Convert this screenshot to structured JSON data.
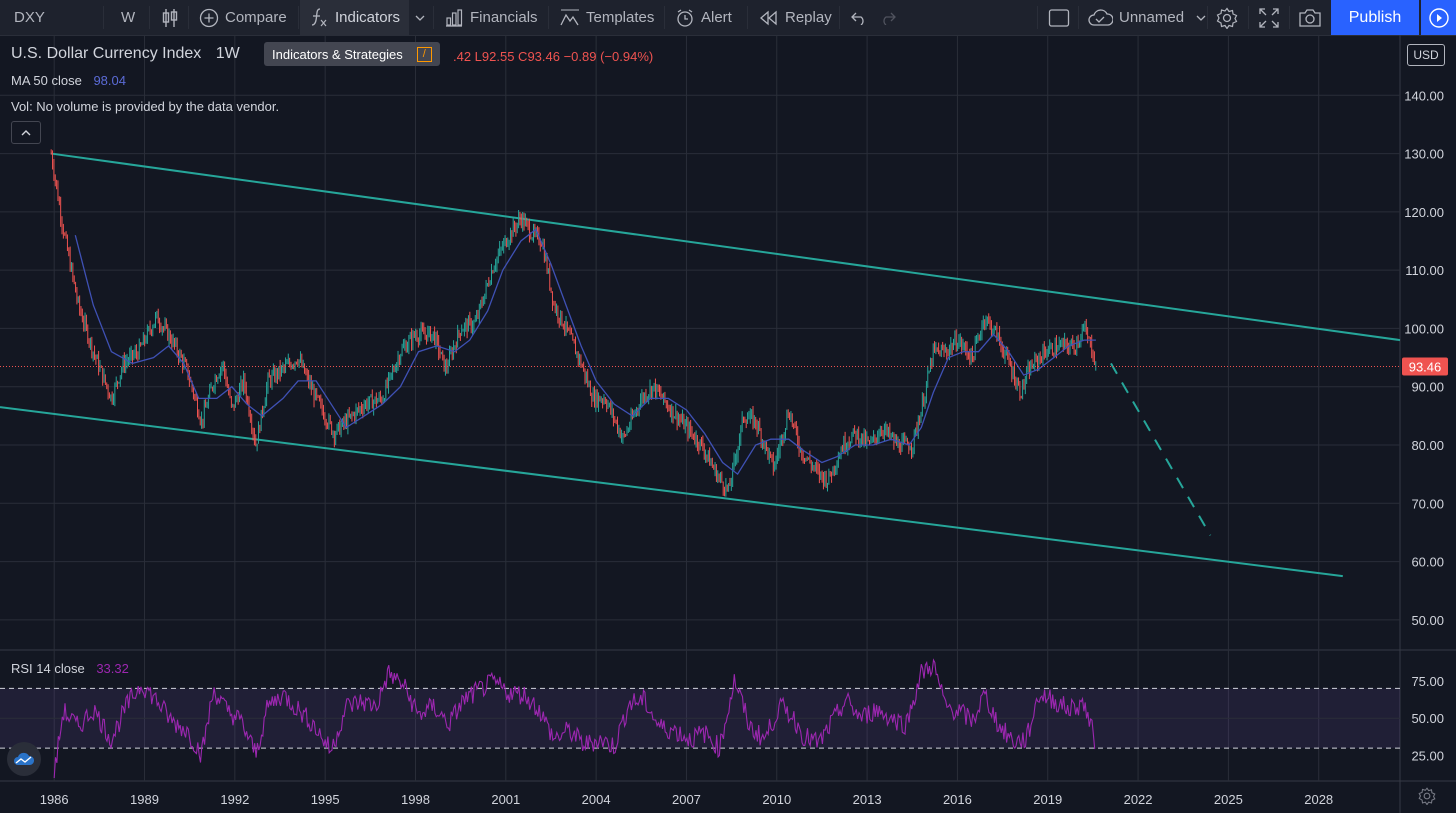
{
  "toolbar": {
    "symbol": "DXY",
    "interval": "W",
    "compare": "Compare",
    "indicators": "Indicators",
    "financials": "Financials",
    "templates": "Templates",
    "alert": "Alert",
    "replay": "Replay",
    "layout_name": "Unnamed",
    "publish": "Publish"
  },
  "tooltip": {
    "label": "Indicators & Strategies",
    "key": "/"
  },
  "legend": {
    "title": "U.S. Dollar Currency Index",
    "interval": "1W",
    "ohlc_visible": ".42  L92.55  C93.46  −0.89 (−0.94%)",
    "ma_label": "MA 50 close",
    "ma_value": "98.04",
    "vol_text": "Vol: No volume is provided by the data vendor."
  },
  "currency": "USD",
  "colors": {
    "background": "#131722",
    "grid": "#2a2e39",
    "trendline": "#26a69a",
    "ma_line": "#3f51b5",
    "candle_up": "#26a69a",
    "candle_down": "#ef5350",
    "rsi_line": "#9c27b0",
    "rsi_band": "#7e57c2",
    "price_label": "#ef5350",
    "ma_value": "#5b6bd6",
    "rsi_value": "#9c27b0",
    "publish": "#2962ff"
  },
  "chart_data": [
    {
      "type": "line",
      "title": "U.S. Dollar Currency Index",
      "interval": "1W",
      "y_axis_ticks": [
        "140.00",
        "130.00",
        "120.00",
        "110.00",
        "100.00",
        "90.00",
        "80.00",
        "70.00",
        "60.00",
        "50.00"
      ],
      "ylim": [
        45,
        150
      ],
      "x_axis_ticks": [
        "1986",
        "1989",
        "1992",
        "1995",
        "1998",
        "2001",
        "2004",
        "2007",
        "2010",
        "2013",
        "2016",
        "2019",
        "2022",
        "2025",
        "2028"
      ],
      "xlim": [
        1984.2,
        2030.7
      ],
      "last_price": "93.46",
      "price_series_approx": [
        [
          1985.9,
          130
        ],
        [
          1986.3,
          117
        ],
        [
          1986.8,
          104
        ],
        [
          1987.3,
          96
        ],
        [
          1987.9,
          88
        ],
        [
          1988.3,
          94
        ],
        [
          1988.8,
          96
        ],
        [
          1989.4,
          102
        ],
        [
          1989.9,
          98
        ],
        [
          1990.4,
          93
        ],
        [
          1990.9,
          84
        ],
        [
          1991.3,
          91
        ],
        [
          1991.6,
          94
        ],
        [
          1991.9,
          86
        ],
        [
          1992.3,
          91
        ],
        [
          1992.7,
          80
        ],
        [
          1993.1,
          91
        ],
        [
          1993.6,
          93
        ],
        [
          1994.1,
          95
        ],
        [
          1994.6,
          89
        ],
        [
          1995.3,
          82
        ],
        [
          1995.7,
          84
        ],
        [
          1996.3,
          87
        ],
        [
          1996.9,
          88
        ],
        [
          1997.5,
          96
        ],
        [
          1998.0,
          99
        ],
        [
          1998.6,
          99
        ],
        [
          1999.0,
          93
        ],
        [
          1999.5,
          100
        ],
        [
          2000.0,
          101
        ],
        [
          2000.6,
          111
        ],
        [
          2001.0,
          115
        ],
        [
          2001.5,
          119
        ],
        [
          2001.9,
          116
        ],
        [
          2002.2,
          115
        ],
        [
          2002.6,
          104
        ],
        [
          2003.0,
          100
        ],
        [
          2003.5,
          94
        ],
        [
          2003.9,
          88
        ],
        [
          2004.3,
          88
        ],
        [
          2004.9,
          81
        ],
        [
          2005.5,
          88
        ],
        [
          2005.9,
          90
        ],
        [
          2006.5,
          86
        ],
        [
          2007.0,
          83
        ],
        [
          2007.5,
          80
        ],
        [
          2008.0,
          75
        ],
        [
          2008.4,
          72
        ],
        [
          2008.9,
          85
        ],
        [
          2009.3,
          84
        ],
        [
          2009.9,
          76
        ],
        [
          2010.4,
          86
        ],
        [
          2010.8,
          79
        ],
        [
          2011.4,
          75
        ],
        [
          2011.7,
          74
        ],
        [
          2012.2,
          80
        ],
        [
          2012.6,
          82
        ],
        [
          2013.1,
          80
        ],
        [
          2013.5,
          83
        ],
        [
          2014.0,
          80
        ],
        [
          2014.5,
          80
        ],
        [
          2014.8,
          86
        ],
        [
          2015.2,
          96
        ],
        [
          2015.6,
          96
        ],
        [
          2016.0,
          98
        ],
        [
          2016.5,
          95
        ],
        [
          2016.9,
          102
        ],
        [
          2017.3,
          99
        ],
        [
          2017.8,
          93
        ],
        [
          2018.1,
          89
        ],
        [
          2018.4,
          93
        ],
        [
          2018.9,
          96
        ],
        [
          2019.4,
          97
        ],
        [
          2019.9,
          97
        ],
        [
          2020.2,
          100
        ],
        [
          2020.5,
          96
        ],
        [
          2020.6,
          93.5
        ]
      ],
      "ma_series_approx": [
        [
          1986.7,
          116
        ],
        [
          1987.3,
          104
        ],
        [
          1987.9,
          96
        ],
        [
          1988.6,
          94
        ],
        [
          1989.3,
          95
        ],
        [
          1989.8,
          97
        ],
        [
          1990.3,
          94
        ],
        [
          1990.8,
          88
        ],
        [
          1991.4,
          88
        ],
        [
          1991.9,
          90
        ],
        [
          1992.4,
          87
        ],
        [
          1992.9,
          85
        ],
        [
          1993.6,
          88
        ],
        [
          1994.1,
          91
        ],
        [
          1994.7,
          91
        ],
        [
          1995.2,
          87
        ],
        [
          1995.7,
          83
        ],
        [
          1996.3,
          85
        ],
        [
          1996.9,
          87
        ],
        [
          1997.5,
          90
        ],
        [
          1998.1,
          96
        ],
        [
          1998.7,
          97
        ],
        [
          1999.3,
          96
        ],
        [
          1999.8,
          98
        ],
        [
          2000.4,
          103
        ],
        [
          2000.9,
          110
        ],
        [
          2001.5,
          115
        ],
        [
          2002.0,
          117
        ],
        [
          2002.5,
          111
        ],
        [
          2003.0,
          104
        ],
        [
          2003.5,
          97
        ],
        [
          2004.0,
          91
        ],
        [
          2004.6,
          87
        ],
        [
          2005.2,
          85
        ],
        [
          2005.8,
          88
        ],
        [
          2006.4,
          88
        ],
        [
          2007.0,
          86
        ],
        [
          2007.6,
          82
        ],
        [
          2008.2,
          77
        ],
        [
          2008.7,
          75
        ],
        [
          2009.3,
          80
        ],
        [
          2009.8,
          81
        ],
        [
          2010.4,
          81
        ],
        [
          2010.9,
          79
        ],
        [
          2011.5,
          77
        ],
        [
          2012.0,
          78
        ],
        [
          2012.6,
          80
        ],
        [
          2013.2,
          80
        ],
        [
          2013.8,
          81
        ],
        [
          2014.4,
          80
        ],
        [
          2014.8,
          83
        ],
        [
          2015.2,
          89
        ],
        [
          2015.7,
          95
        ],
        [
          2016.2,
          96
        ],
        [
          2016.7,
          96
        ],
        [
          2017.2,
          99
        ],
        [
          2017.7,
          96
        ],
        [
          2018.2,
          92
        ],
        [
          2018.7,
          93
        ],
        [
          2019.2,
          95
        ],
        [
          2019.7,
          97
        ],
        [
          2020.2,
          98
        ],
        [
          2020.6,
          98
        ]
      ],
      "trendlines_approx": [
        {
          "name": "upper channel",
          "from": [
            1985.9,
            130
          ],
          "to": [
            2030.7,
            98
          ]
        },
        {
          "name": "lower channel",
          "from": [
            1984.2,
            86.5
          ],
          "to": [
            2028.8,
            57.5
          ]
        },
        {
          "name": "projection (dashed)",
          "from": [
            2021.1,
            94
          ],
          "to": [
            2024.4,
            64.5
          ]
        }
      ]
    },
    {
      "type": "line",
      "title": "RSI 14 close",
      "value": "33.32",
      "y_axis_ticks": [
        "75.00",
        "50.00",
        "25.00"
      ],
      "ylim": [
        8,
        95
      ],
      "band": [
        30,
        70
      ],
      "series_approx": [
        [
          1986.0,
          12
        ],
        [
          1986.3,
          55
        ],
        [
          1986.8,
          44
        ],
        [
          1987.3,
          56
        ],
        [
          1987.9,
          36
        ],
        [
          1988.4,
          58
        ],
        [
          1988.9,
          73
        ],
        [
          1989.4,
          62
        ],
        [
          1989.9,
          48
        ],
        [
          1990.4,
          42
        ],
        [
          1990.9,
          26
        ],
        [
          1991.3,
          69
        ],
        [
          1991.7,
          56
        ],
        [
          1992.2,
          48
        ],
        [
          1992.7,
          26
        ],
        [
          1993.1,
          58
        ],
        [
          1993.6,
          66
        ],
        [
          1994.1,
          56
        ],
        [
          1994.6,
          46
        ],
        [
          1995.2,
          28
        ],
        [
          1995.7,
          58
        ],
        [
          1996.2,
          61
        ],
        [
          1996.7,
          58
        ],
        [
          1997.1,
          80
        ],
        [
          1997.6,
          72
        ],
        [
          1998.1,
          52
        ],
        [
          1998.6,
          58
        ],
        [
          1999.1,
          46
        ],
        [
          1999.6,
          62
        ],
        [
          2000.2,
          70
        ],
        [
          2000.6,
          74
        ],
        [
          2001.1,
          67
        ],
        [
          2001.6,
          66
        ],
        [
          2002.1,
          56
        ],
        [
          2002.6,
          36
        ],
        [
          2003.1,
          42
        ],
        [
          2003.6,
          32
        ],
        [
          2004.1,
          36
        ],
        [
          2004.6,
          31
        ],
        [
          2005.1,
          60
        ],
        [
          2005.6,
          62
        ],
        [
          2006.1,
          44
        ],
        [
          2006.6,
          42
        ],
        [
          2007.1,
          36
        ],
        [
          2007.6,
          40
        ],
        [
          2008.1,
          30
        ],
        [
          2008.6,
          76
        ],
        [
          2009.1,
          44
        ],
        [
          2009.6,
          36
        ],
        [
          2010.1,
          58
        ],
        [
          2010.5,
          52
        ],
        [
          2010.9,
          38
        ],
        [
          2011.4,
          33
        ],
        [
          2011.8,
          46
        ],
        [
          2012.3,
          62
        ],
        [
          2012.8,
          50
        ],
        [
          2013.3,
          56
        ],
        [
          2013.8,
          50
        ],
        [
          2014.3,
          46
        ],
        [
          2014.8,
          80
        ],
        [
          2015.2,
          86
        ],
        [
          2015.6,
          58
        ],
        [
          2016.1,
          54
        ],
        [
          2016.5,
          48
        ],
        [
          2016.9,
          66
        ],
        [
          2017.4,
          44
        ],
        [
          2017.9,
          34
        ],
        [
          2018.3,
          36
        ],
        [
          2018.7,
          66
        ],
        [
          2019.2,
          62
        ],
        [
          2019.7,
          56
        ],
        [
          2020.2,
          60
        ],
        [
          2020.6,
          33
        ]
      ]
    }
  ]
}
